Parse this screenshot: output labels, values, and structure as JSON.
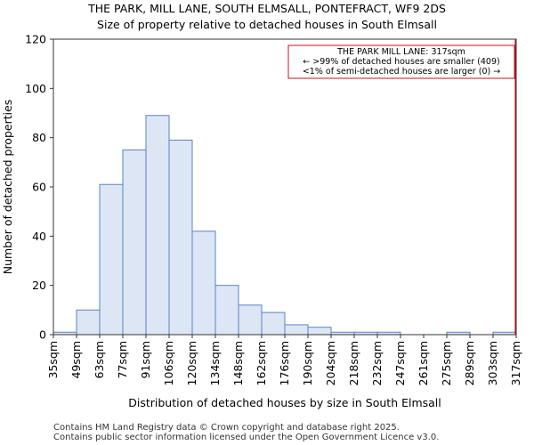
{
  "chart_data": {
    "type": "bar",
    "title": "THE PARK, MILL LANE, SOUTH ELMSALL, PONTEFRACT, WF9 2DS",
    "subtitle": "Size of property relative to detached houses in South Elmsall",
    "xlabel": "Distribution of detached houses by size in South Elmsall",
    "ylabel": "Number of detached properties",
    "ylim": [
      0,
      120
    ],
    "yticks": [
      0,
      20,
      40,
      60,
      80,
      100,
      120
    ],
    "x_tick_labels": [
      "35sqm",
      "49sqm",
      "63sqm",
      "77sqm",
      "91sqm",
      "106sqm",
      "120sqm",
      "134sqm",
      "148sqm",
      "162sqm",
      "176sqm",
      "190sqm",
      "204sqm",
      "218sqm",
      "232sqm",
      "247sqm",
      "261sqm",
      "275sqm",
      "289sqm",
      "303sqm",
      "317sqm"
    ],
    "values": [
      1,
      10,
      61,
      75,
      89,
      79,
      42,
      20,
      12,
      9,
      4,
      3,
      1,
      1,
      1,
      0,
      0,
      1,
      0,
      1
    ],
    "bar_color": "#dce6f5",
    "bar_edge_color": "#5a84c4",
    "marker": {
      "value_sqm": 317,
      "color": "#c0141c",
      "annotation": [
        "THE PARK MILL LANE: 317sqm",
        "← >99% of detached houses are smaller (409)",
        "<1% of semi-detached houses are larger (0) →"
      ]
    }
  },
  "footer": {
    "line1": "Contains HM Land Registry data © Crown copyright and database right 2025.",
    "line2": "Contains public sector information licensed under the Open Government Licence v3.0."
  }
}
